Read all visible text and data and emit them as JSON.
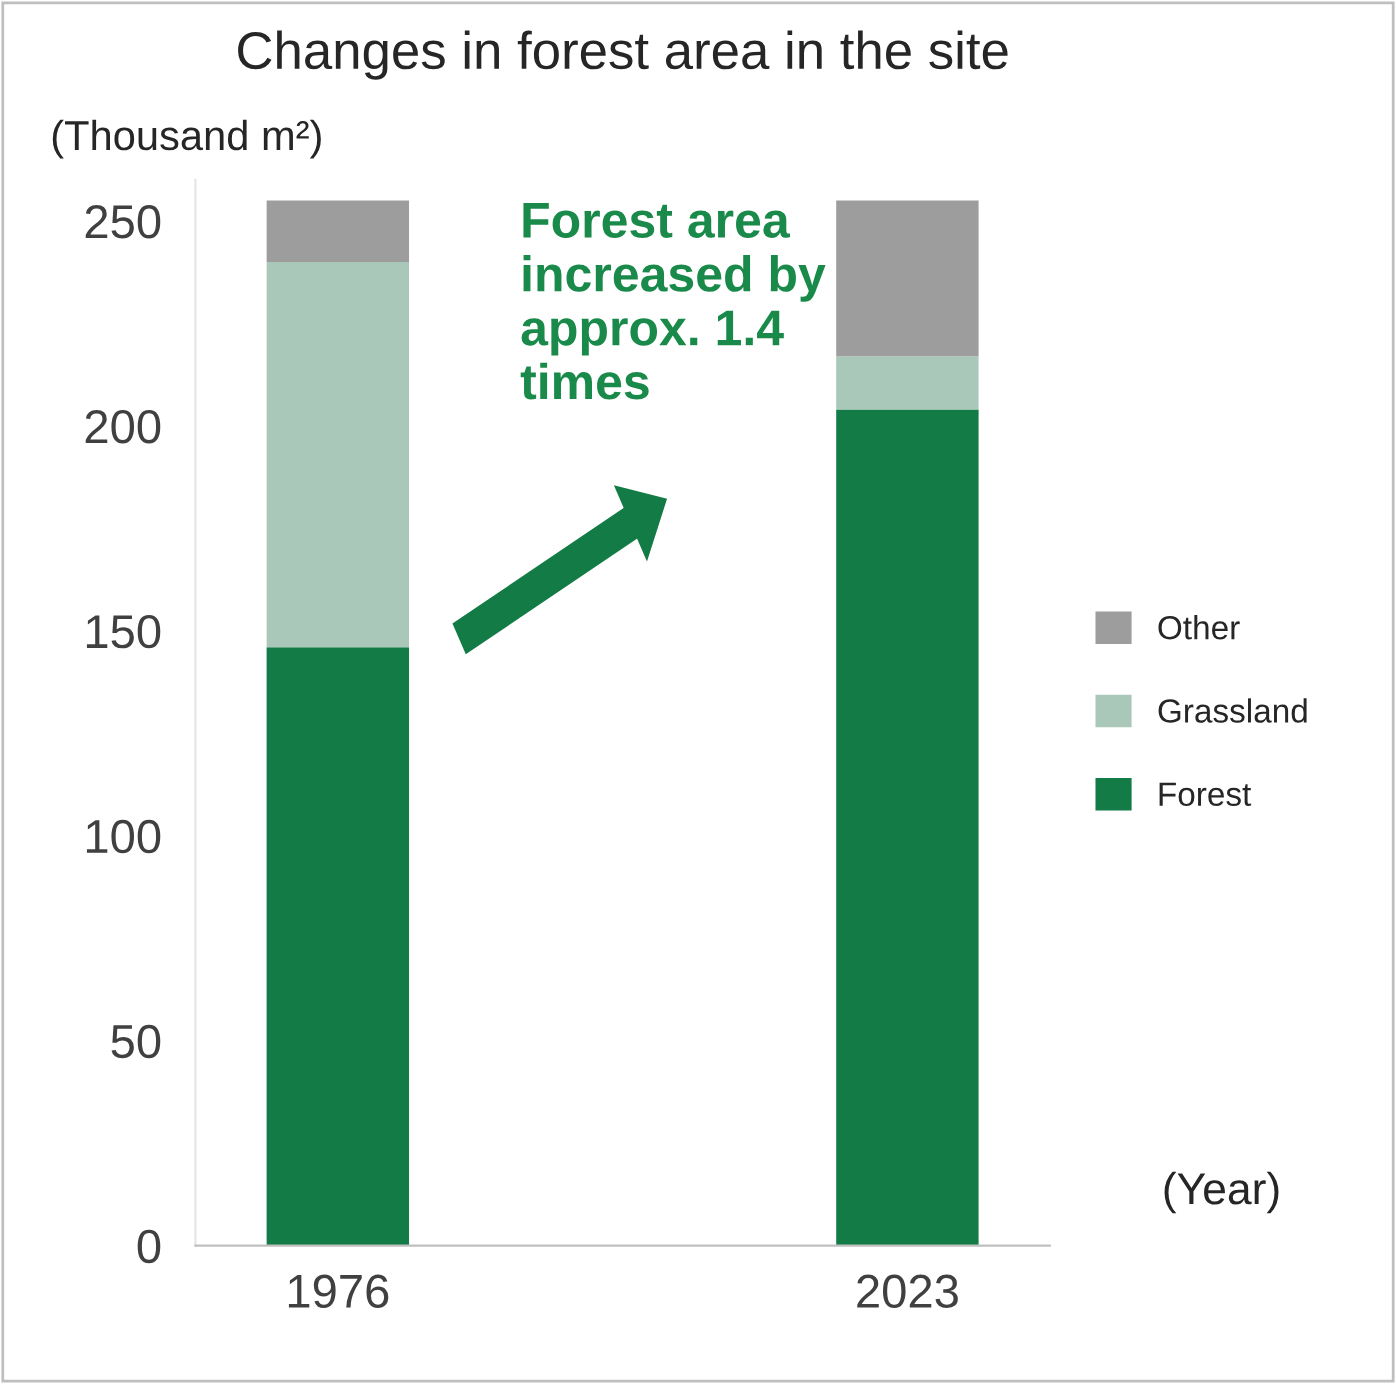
{
  "chart_data": {
    "type": "bar",
    "title": "Changes in forest area in the site",
    "ylabel": "(Thousand m²)",
    "stacked": true,
    "categories": [
      "1976",
      null,
      "2023"
    ],
    "series": [
      {
        "name": "Forest",
        "color": "#137b45",
        "values": [
          146,
          null,
          204
        ]
      },
      {
        "name": "Grassland",
        "color": "#aac8b9",
        "values": [
          94,
          null,
          13
        ]
      },
      {
        "name": "Other",
        "color": "#9d9d9d",
        "values": [
          15,
          null,
          38
        ]
      }
    ],
    "ylim": [
      0,
      260
    ],
    "yticks": [
      0,
      50,
      100,
      150,
      200,
      250
    ],
    "grid": false,
    "legend": "right",
    "annotations": [
      "Forest area increased by approx. 1.4 times",
      "(Year)"
    ]
  }
}
